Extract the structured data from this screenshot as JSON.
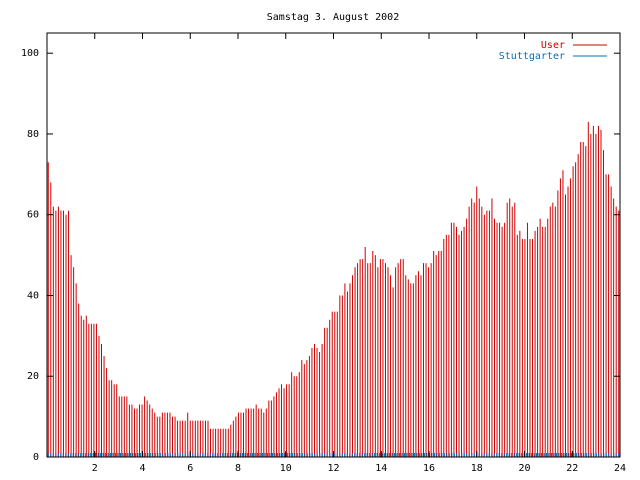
{
  "chart_data": {
    "type": "bar",
    "title": "Samstag 3. August 2002",
    "xlim": [
      0,
      24
    ],
    "ylim": [
      0,
      105
    ],
    "x_ticks": [
      2,
      4,
      6,
      8,
      10,
      12,
      14,
      16,
      18,
      20,
      22,
      24
    ],
    "y_ticks": [
      0,
      20,
      40,
      60,
      80,
      100
    ],
    "legend_position": "top-right",
    "series": [
      {
        "name": "User",
        "color": "#cc0000",
        "values": [
          73,
          68,
          62,
          61,
          62,
          61,
          61,
          60,
          61,
          50,
          47,
          43,
          38,
          35,
          34,
          35,
          33,
          33,
          33,
          33,
          30,
          28,
          25,
          22,
          19,
          19,
          18,
          18,
          15,
          15,
          15,
          15,
          13,
          13,
          12,
          12,
          13,
          13,
          15,
          14,
          13,
          12,
          11,
          10,
          10,
          11,
          11,
          11,
          11,
          10,
          10,
          9,
          9,
          9,
          9,
          11,
          9,
          9,
          9,
          9,
          9,
          9,
          9,
          9,
          7,
          7,
          7,
          7,
          7,
          7,
          7,
          7,
          8,
          9,
          10,
          11,
          11,
          11,
          12,
          12,
          12,
          12,
          13,
          12,
          12,
          11,
          12,
          14,
          14,
          15,
          16,
          17,
          18,
          17,
          18,
          18,
          21,
          20,
          20,
          21,
          24,
          23,
          24,
          25,
          27,
          28,
          27,
          26,
          28,
          32,
          32,
          34,
          36,
          36,
          36,
          40,
          40,
          43,
          41,
          43,
          45,
          47,
          48,
          49,
          49,
          52,
          48,
          48,
          51,
          50,
          47,
          49,
          49,
          48,
          47,
          45,
          42,
          47,
          48,
          49,
          49,
          45,
          44,
          43,
          43,
          45,
          46,
          45,
          48,
          48,
          47,
          48,
          51,
          50,
          51,
          51,
          54,
          55,
          55,
          58,
          58,
          57,
          55,
          56,
          57,
          59,
          62,
          64,
          63,
          67,
          64,
          62,
          60,
          61,
          61,
          64,
          59,
          58,
          58,
          57,
          58,
          63,
          64,
          62,
          63,
          55,
          56,
          54,
          54,
          58,
          54,
          54,
          56,
          57,
          59,
          57,
          57,
          59,
          62,
          63,
          62,
          66,
          69,
          71,
          65,
          67,
          69,
          72,
          73,
          75,
          78,
          78,
          77,
          83,
          80,
          82,
          80,
          82,
          81,
          76,
          70,
          70,
          67,
          64,
          62,
          61
        ]
      },
      {
        "name": "Stuttgarter",
        "color": "#0070c0",
        "values": [
          1,
          1,
          1,
          1,
          1,
          1,
          1,
          1,
          1,
          1,
          1,
          1,
          1,
          1,
          1,
          1,
          1,
          1,
          1,
          1,
          1,
          1,
          1,
          1,
          1,
          1,
          1,
          1,
          1,
          1,
          1,
          1,
          1,
          1,
          1,
          1,
          1,
          1,
          1,
          1,
          1,
          1,
          1,
          1,
          1,
          1,
          1,
          1,
          1,
          1,
          1,
          1,
          1,
          1,
          1,
          1,
          1,
          1,
          1,
          1,
          1,
          1,
          1,
          1,
          1,
          1,
          1,
          1,
          1,
          1,
          1,
          1,
          1,
          1,
          1,
          1,
          1,
          1,
          1,
          1,
          1,
          1,
          1,
          1,
          1,
          1,
          1,
          1,
          1,
          1,
          1,
          1,
          1,
          1,
          1,
          1,
          1,
          1,
          1,
          1,
          1,
          1,
          1,
          1,
          1,
          1,
          1,
          1,
          1,
          1,
          1,
          1,
          1,
          1,
          1,
          1,
          1,
          1,
          1,
          1,
          1,
          1,
          1,
          1,
          1,
          1,
          1,
          1,
          1,
          1,
          1,
          1,
          1,
          1,
          1,
          1,
          1,
          1,
          1,
          1,
          1,
          1,
          1,
          1,
          1,
          1,
          1,
          1,
          1,
          1,
          1,
          1,
          1,
          1,
          1,
          1,
          1,
          1,
          1,
          1,
          1,
          1,
          1,
          1,
          1,
          1,
          1,
          1,
          1,
          1,
          1,
          1,
          1,
          1,
          1,
          1,
          1,
          1,
          1,
          1,
          1,
          1,
          1,
          1,
          1,
          1,
          1,
          1,
          1,
          1,
          1,
          1,
          1,
          1,
          1,
          1,
          1,
          1,
          1,
          1,
          1,
          1,
          1,
          1,
          1,
          1,
          1,
          1,
          1,
          1,
          1,
          1,
          1,
          1,
          1,
          1,
          1,
          1,
          1,
          1,
          1,
          1,
          1,
          1,
          1,
          1,
          1,
          1,
          1,
          1
        ]
      }
    ]
  }
}
